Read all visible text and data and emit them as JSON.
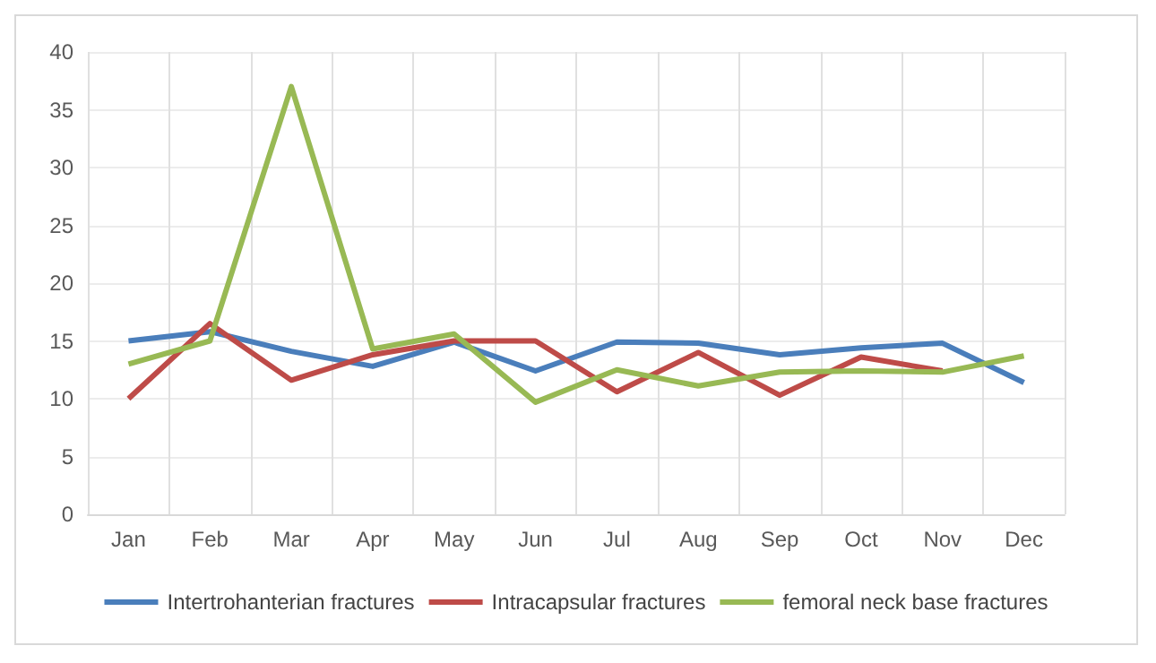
{
  "chart_data": {
    "type": "line",
    "categories": [
      "Jan",
      "Feb",
      "Mar",
      "Apr",
      "May",
      "Jun",
      "Jul",
      "Aug",
      "Sep",
      "Oct",
      "Nov",
      "Dec"
    ],
    "series": [
      {
        "name": "Intertrohanterian fractures",
        "color": "#4a7ebb",
        "values": [
          15,
          15.8,
          14.1,
          12.8,
          14.9,
          12.4,
          14.9,
          14.8,
          13.8,
          14.4,
          14.8,
          11.4
        ]
      },
      {
        "name": "Intracapsular fractures",
        "color": "#be4b48",
        "values": [
          10,
          16.5,
          11.6,
          13.8,
          15,
          15,
          10.6,
          14,
          10.3,
          13.6,
          12.4,
          null
        ]
      },
      {
        "name": "femoral neck base fractures",
        "color": "#98b954",
        "values": [
          13,
          15,
          37,
          14.3,
          15.6,
          9.7,
          12.5,
          11.1,
          12.3,
          12.4,
          12.3,
          13.7
        ]
      }
    ],
    "ylim": [
      0,
      40
    ],
    "yticks": [
      0,
      5,
      10,
      15,
      20,
      25,
      30,
      35,
      40
    ],
    "grid": true,
    "legend": "bottom",
    "marker": "none",
    "line_style": "solid"
  }
}
